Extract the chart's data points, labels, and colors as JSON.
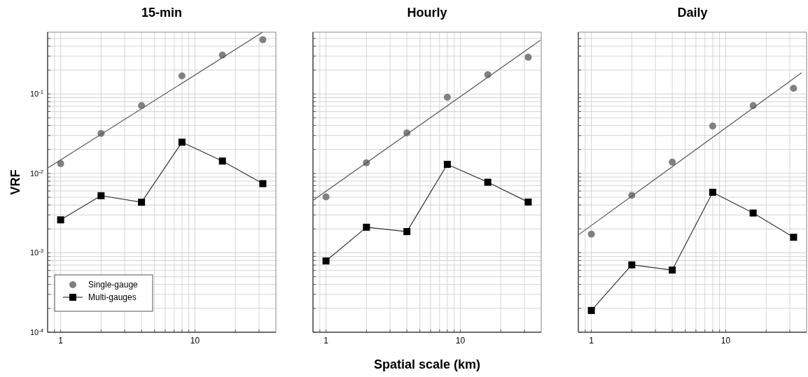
{
  "chart_data": [
    {
      "type": "line",
      "title": "15-min",
      "ylabel": "VRF",
      "xlim": [
        0.8,
        40
      ],
      "ylim": [
        0.0001,
        0.6
      ],
      "log": "xy",
      "grid": true,
      "legend": "bottom left",
      "xticks": [
        {
          "value": 0.9,
          "label": null
        },
        {
          "value": 1,
          "label": "1"
        },
        {
          "value": 2,
          "label": null
        },
        {
          "value": 3,
          "label": null
        },
        {
          "value": 4,
          "label": null
        },
        {
          "value": 5,
          "label": null
        },
        {
          "value": 6,
          "label": null
        },
        {
          "value": 7,
          "label": null
        },
        {
          "value": 8,
          "label": null
        },
        {
          "value": 9,
          "label": null
        },
        {
          "value": 10,
          "label": "10"
        },
        {
          "value": 20,
          "label": null
        },
        {
          "value": 30,
          "label": null
        }
      ],
      "yticks": [
        {
          "value": 0.0001,
          "label": "10$^{-4}$"
        },
        {
          "value": 0.0002,
          "label": null
        },
        {
          "value": 0.0003,
          "label": null
        },
        {
          "value": 0.0004,
          "label": null
        },
        {
          "value": 0.0005,
          "label": null
        },
        {
          "value": 0.0006,
          "label": null
        },
        {
          "value": 0.0007,
          "label": null
        },
        {
          "value": 0.0008,
          "label": null
        },
        {
          "value": 0.0009,
          "label": null
        },
        {
          "value": 0.001,
          "label": "10$^{-3}$"
        },
        {
          "value": 0.002,
          "label": null
        },
        {
          "value": 0.003,
          "label": null
        },
        {
          "value": 0.004,
          "label": null
        },
        {
          "value": 0.005,
          "label": null
        },
        {
          "value": 0.006,
          "label": null
        },
        {
          "value": 0.007,
          "label": null
        },
        {
          "value": 0.008,
          "label": null
        },
        {
          "value": 0.009,
          "label": null
        },
        {
          "value": 0.01,
          "label": "10$^{-2}$"
        },
        {
          "value": 0.02,
          "label": null
        },
        {
          "value": 0.03,
          "label": null
        },
        {
          "value": 0.04,
          "label": null
        },
        {
          "value": 0.05,
          "label": null
        },
        {
          "value": 0.06,
          "label": null
        },
        {
          "value": 0.07,
          "label": null
        },
        {
          "value": 0.08,
          "label": null
        },
        {
          "value": 0.09,
          "label": null
        },
        {
          "value": 0.1,
          "label": "10$^{-1}$"
        },
        {
          "value": 0.2,
          "label": null
        },
        {
          "value": 0.3,
          "label": null
        },
        {
          "value": 0.4,
          "label": null
        },
        {
          "value": 0.5,
          "label": null
        }
      ],
      "series": [
        {
          "name": "Single-gauge",
          "type": "scatter",
          "marker": "circle",
          "color": "#808080",
          "x": [
            1,
            2,
            4,
            8,
            16,
            32
          ],
          "values": [
            0.0133,
            0.0319,
            0.0713,
            0.169,
            0.309,
            0.482
          ]
        },
        {
          "name": "Multi-gauges",
          "type": "line",
          "marker": "square",
          "color": "#000000",
          "x": [
            1,
            2,
            4,
            8,
            16,
            32
          ],
          "values": [
            0.0026,
            0.00524,
            0.00433,
            0.0247,
            0.0143,
            0.00743
          ]
        },
        {
          "type": "line",
          "marker": "none",
          "color": "#555555",
          "x": [
            0.81,
            31.9
          ],
          "values": [
            0.0118,
            0.6
          ]
        }
      ]
    },
    {
      "type": "line",
      "title": "Hourly",
      "xlabel": "Spatial scale (km)",
      "xlim": [
        0.8,
        40
      ],
      "ylim": [
        0.0001,
        0.6
      ],
      "log": "xy",
      "grid": true,
      "tick_labels": "x",
      "xticks": [
        {
          "value": 0.9,
          "label": null
        },
        {
          "value": 1,
          "label": "1"
        },
        {
          "value": 2,
          "label": null
        },
        {
          "value": 3,
          "label": null
        },
        {
          "value": 4,
          "label": null
        },
        {
          "value": 5,
          "label": null
        },
        {
          "value": 6,
          "label": null
        },
        {
          "value": 7,
          "label": null
        },
        {
          "value": 8,
          "label": null
        },
        {
          "value": 9,
          "label": null
        },
        {
          "value": 10,
          "label": "10"
        },
        {
          "value": 20,
          "label": null
        },
        {
          "value": 30,
          "label": null
        }
      ],
      "yticks": [
        {
          "value": 0.0001,
          "label": null
        },
        {
          "value": 0.0002,
          "label": null
        },
        {
          "value": 0.0003,
          "label": null
        },
        {
          "value": 0.0004,
          "label": null
        },
        {
          "value": 0.0005,
          "label": null
        },
        {
          "value": 0.0006,
          "label": null
        },
        {
          "value": 0.0007,
          "label": null
        },
        {
          "value": 0.0008,
          "label": null
        },
        {
          "value": 0.0009,
          "label": null
        },
        {
          "value": 0.001,
          "label": null
        },
        {
          "value": 0.002,
          "label": null
        },
        {
          "value": 0.003,
          "label": null
        },
        {
          "value": 0.004,
          "label": null
        },
        {
          "value": 0.005,
          "label": null
        },
        {
          "value": 0.006,
          "label": null
        },
        {
          "value": 0.007,
          "label": null
        },
        {
          "value": 0.008,
          "label": null
        },
        {
          "value": 0.009,
          "label": null
        },
        {
          "value": 0.01,
          "label": null
        },
        {
          "value": 0.02,
          "label": null
        },
        {
          "value": 0.03,
          "label": null
        },
        {
          "value": 0.04,
          "label": null
        },
        {
          "value": 0.05,
          "label": null
        },
        {
          "value": 0.06,
          "label": null
        },
        {
          "value": 0.07,
          "label": null
        },
        {
          "value": 0.08,
          "label": null
        },
        {
          "value": 0.09,
          "label": null
        },
        {
          "value": 0.1,
          "label": null
        },
        {
          "value": 0.2,
          "label": null
        },
        {
          "value": 0.3,
          "label": null
        },
        {
          "value": 0.4,
          "label": null
        },
        {
          "value": 0.5,
          "label": null
        }
      ],
      "series": [
        {
          "type": "scatter",
          "marker": "circle",
          "color": "#808080",
          "x": [
            1,
            2,
            4,
            8,
            16,
            32
          ],
          "values": [
            0.00506,
            0.0136,
            0.0324,
            0.091,
            0.175,
            0.29
          ]
        },
        {
          "type": "line",
          "marker": "square",
          "color": "#000000",
          "x": [
            1,
            2,
            4,
            8,
            16,
            32
          ],
          "values": [
            0.00079,
            0.0021,
            0.00185,
            0.013,
            0.00774,
            0.00436
          ]
        },
        {
          "type": "line",
          "marker": "none",
          "color": "#555555",
          "x": [
            0.8,
            39.4
          ],
          "values": [
            0.00457,
            0.475
          ]
        }
      ]
    },
    {
      "type": "line",
      "title": "Daily",
      "xlim": [
        0.8,
        40
      ],
      "ylim": [
        0.0001,
        0.6
      ],
      "log": "xy",
      "grid": true,
      "tick_labels": "x",
      "xticks": [
        {
          "value": 0.9,
          "label": null
        },
        {
          "value": 1,
          "label": "1"
        },
        {
          "value": 2,
          "label": null
        },
        {
          "value": 3,
          "label": null
        },
        {
          "value": 4,
          "label": null
        },
        {
          "value": 5,
          "label": null
        },
        {
          "value": 6,
          "label": null
        },
        {
          "value": 7,
          "label": null
        },
        {
          "value": 8,
          "label": null
        },
        {
          "value": 9,
          "label": null
        },
        {
          "value": 10,
          "label": "10"
        },
        {
          "value": 20,
          "label": null
        },
        {
          "value": 30,
          "label": null
        }
      ],
      "yticks": [
        {
          "value": 0.0001,
          "label": null
        },
        {
          "value": 0.0002,
          "label": null
        },
        {
          "value": 0.0003,
          "label": null
        },
        {
          "value": 0.0004,
          "label": null
        },
        {
          "value": 0.0005,
          "label": null
        },
        {
          "value": 0.0006,
          "label": null
        },
        {
          "value": 0.0007,
          "label": null
        },
        {
          "value": 0.0008,
          "label": null
        },
        {
          "value": 0.0009,
          "label": null
        },
        {
          "value": 0.001,
          "label": null
        },
        {
          "value": 0.002,
          "label": null
        },
        {
          "value": 0.003,
          "label": null
        },
        {
          "value": 0.004,
          "label": null
        },
        {
          "value": 0.005,
          "label": null
        },
        {
          "value": 0.006,
          "label": null
        },
        {
          "value": 0.007,
          "label": null
        },
        {
          "value": 0.008,
          "label": null
        },
        {
          "value": 0.009,
          "label": null
        },
        {
          "value": 0.01,
          "label": null
        },
        {
          "value": 0.02,
          "label": null
        },
        {
          "value": 0.03,
          "label": null
        },
        {
          "value": 0.04,
          "label": null
        },
        {
          "value": 0.05,
          "label": null
        },
        {
          "value": 0.06,
          "label": null
        },
        {
          "value": 0.07,
          "label": null
        },
        {
          "value": 0.08,
          "label": null
        },
        {
          "value": 0.09,
          "label": null
        },
        {
          "value": 0.1,
          "label": null
        },
        {
          "value": 0.2,
          "label": null
        },
        {
          "value": 0.3,
          "label": null
        },
        {
          "value": 0.4,
          "label": null
        },
        {
          "value": 0.5,
          "label": null
        }
      ],
      "series": [
        {
          "type": "scatter",
          "marker": "circle",
          "color": "#808080",
          "x": [
            1,
            2,
            4,
            8,
            16,
            32
          ],
          "values": [
            0.00172,
            0.0053,
            0.0139,
            0.0394,
            0.0713,
            0.118
          ]
        },
        {
          "type": "line",
          "marker": "square",
          "color": "#000000",
          "x": [
            1,
            2,
            4,
            8,
            16,
            32
          ],
          "values": [
            0.000188,
            0.000705,
            0.000607,
            0.00578,
            0.00317,
            0.00157
          ]
        },
        {
          "type": "line",
          "marker": "none",
          "color": "#555555",
          "x": [
            0.8,
            36.7
          ],
          "values": [
            0.00168,
            0.185
          ]
        }
      ]
    }
  ]
}
